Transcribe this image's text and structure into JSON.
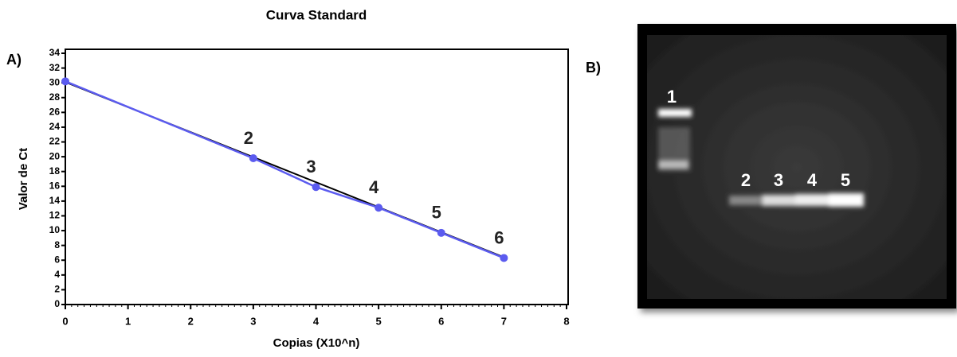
{
  "chart_data": {
    "type": "line",
    "title": "Curva Standard",
    "panel_label": "A)",
    "x_label": "Copias (X10^n)",
    "y_label": "Valor de Ct",
    "xlim": [
      0,
      8
    ],
    "xticks": [
      0,
      1,
      2,
      3,
      4,
      5,
      6,
      7,
      8
    ],
    "ylim": [
      0,
      34
    ],
    "yticks": [
      0,
      2,
      4,
      6,
      8,
      10,
      12,
      14,
      16,
      18,
      20,
      22,
      24,
      26,
      28,
      30,
      32,
      34
    ],
    "x": [
      0,
      3,
      4,
      5,
      6,
      7
    ],
    "series": [
      {
        "color": "#5b5bef",
        "values": [
          30.2,
          19.8,
          15.9,
          13.1,
          9.7,
          6.3
        ],
        "point_labels": [
          null,
          "2",
          "3",
          "4",
          "5",
          "6"
        ]
      }
    ],
    "fit_line": {
      "color": "#000000",
      "x": [
        0,
        7
      ],
      "values": [
        30.1,
        6.4
      ]
    }
  },
  "gel": {
    "panel_label": "B)",
    "lane_labels": [
      "1",
      "2",
      "3",
      "4",
      "5"
    ]
  }
}
